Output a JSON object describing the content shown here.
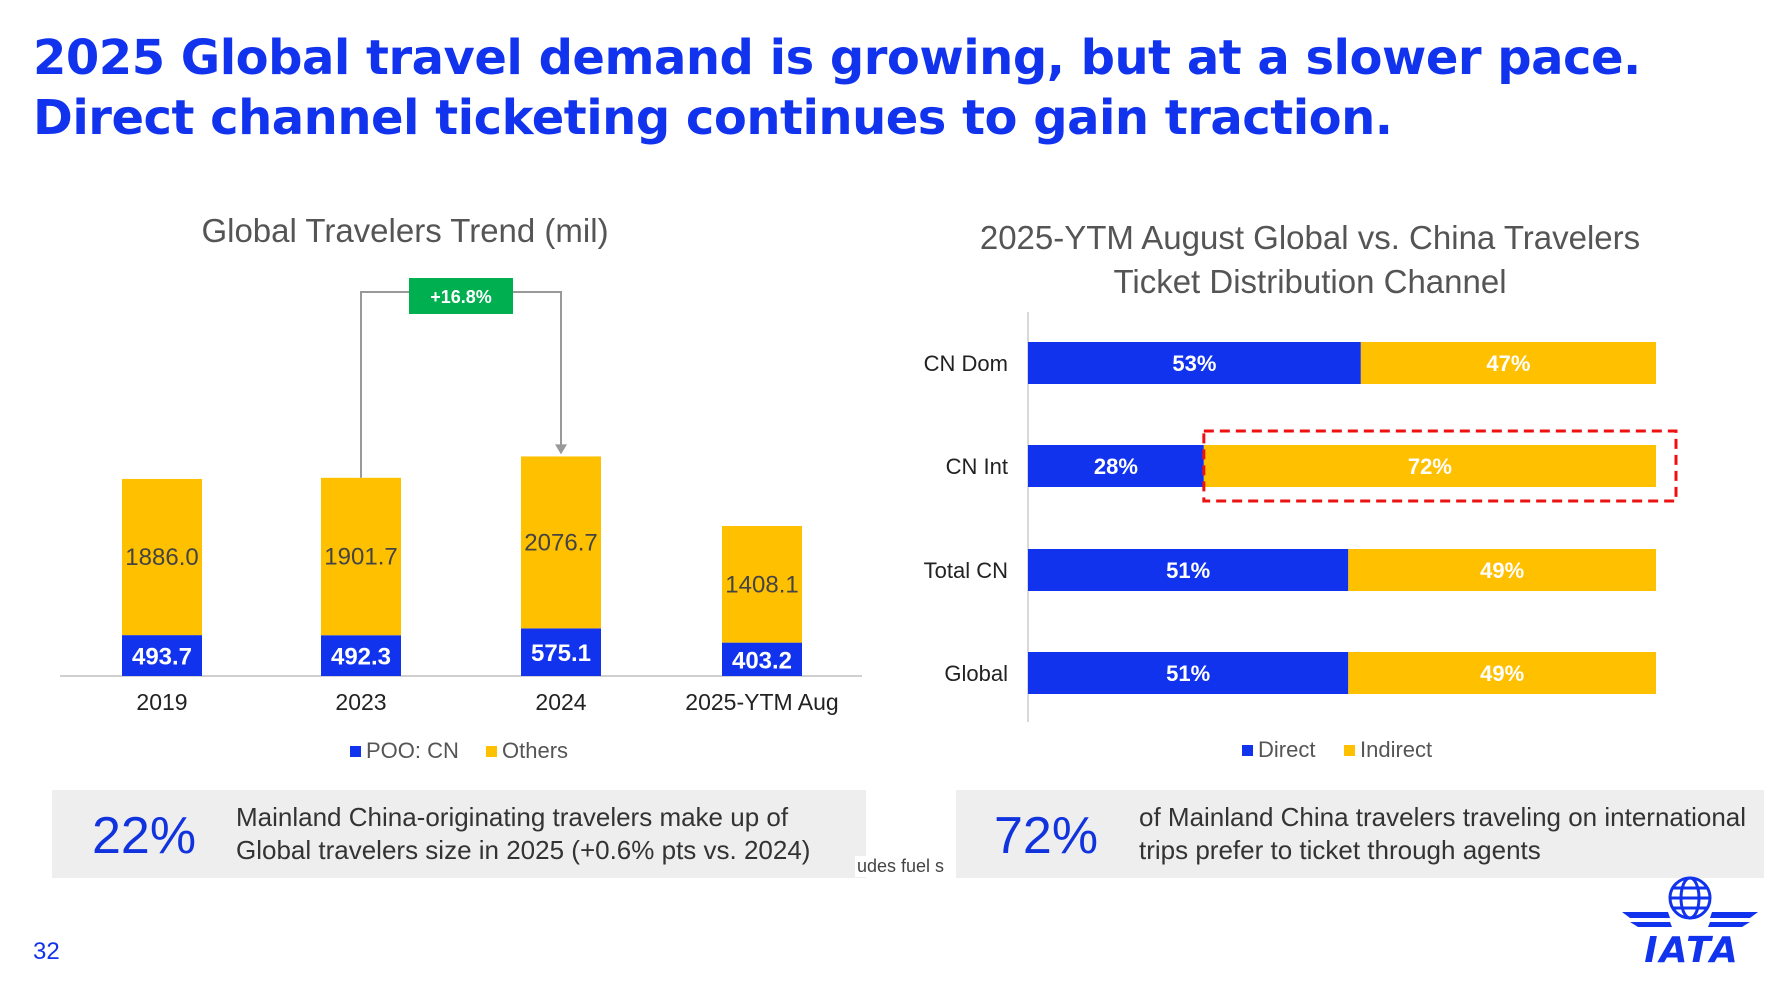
{
  "headline": "2025 Global travel demand is growing, but at a slower pace. Direct channel ticketing continues to gain traction.",
  "page_number": "32",
  "footer_fragment": "udes fuel s",
  "logo_text": "IATA",
  "colors": {
    "blue": "#1133ee",
    "yellow": "#ffc000",
    "green": "#00b050",
    "red": "#ee1111"
  },
  "kpis": [
    {
      "value": "22%",
      "text": "Mainland China-originating travelers make up of Global travelers size in 2025 (+0.6% pts vs. 2024)"
    },
    {
      "value": "72%",
      "text": "of Mainland China travelers traveling on international trips prefer to ticket through agents"
    }
  ],
  "chart_data": [
    {
      "type": "bar",
      "stacked": true,
      "title": "Global Travelers Trend (mil)",
      "categories": [
        "2019",
        "2023",
        "2024",
        "2025-YTM Aug"
      ],
      "series": [
        {
          "name": "POO: CN",
          "color": "#1133ee",
          "values": [
            493.7,
            492.3,
            575.1,
            403.2
          ],
          "labels": [
            "493.7",
            "492.3",
            "575.1",
            "403.2"
          ]
        },
        {
          "name": "Others",
          "color": "#ffc000",
          "values": [
            1886.0,
            1901.7,
            2076.7,
            1408.1
          ],
          "labels": [
            "1886.0",
            "1901.7",
            "2076.7",
            "1408.1"
          ]
        }
      ],
      "annotation": {
        "text": "+16.8%",
        "from_category": "2023",
        "to_category": "2024"
      },
      "legend_position": "bottom",
      "grid": false
    },
    {
      "type": "bar",
      "orientation": "horizontal",
      "stacked": true,
      "title": "2025-YTM August Global vs. China Travelers Ticket Distribution Channel",
      "categories": [
        "CN Dom",
        "CN Int",
        "Total CN",
        "Global"
      ],
      "series": [
        {
          "name": "Direct",
          "color": "#1133ee",
          "values": [
            53,
            28,
            51,
            51
          ],
          "labels": [
            "53%",
            "28%",
            "51%",
            "51%"
          ]
        },
        {
          "name": "Indirect",
          "color": "#ffc000",
          "values": [
            47,
            72,
            49,
            49
          ],
          "labels": [
            "47%",
            "72%",
            "49%",
            "49%"
          ]
        }
      ],
      "highlight": {
        "category": "CN Int",
        "series": "Indirect"
      },
      "legend_position": "bottom",
      "grid": false
    }
  ]
}
